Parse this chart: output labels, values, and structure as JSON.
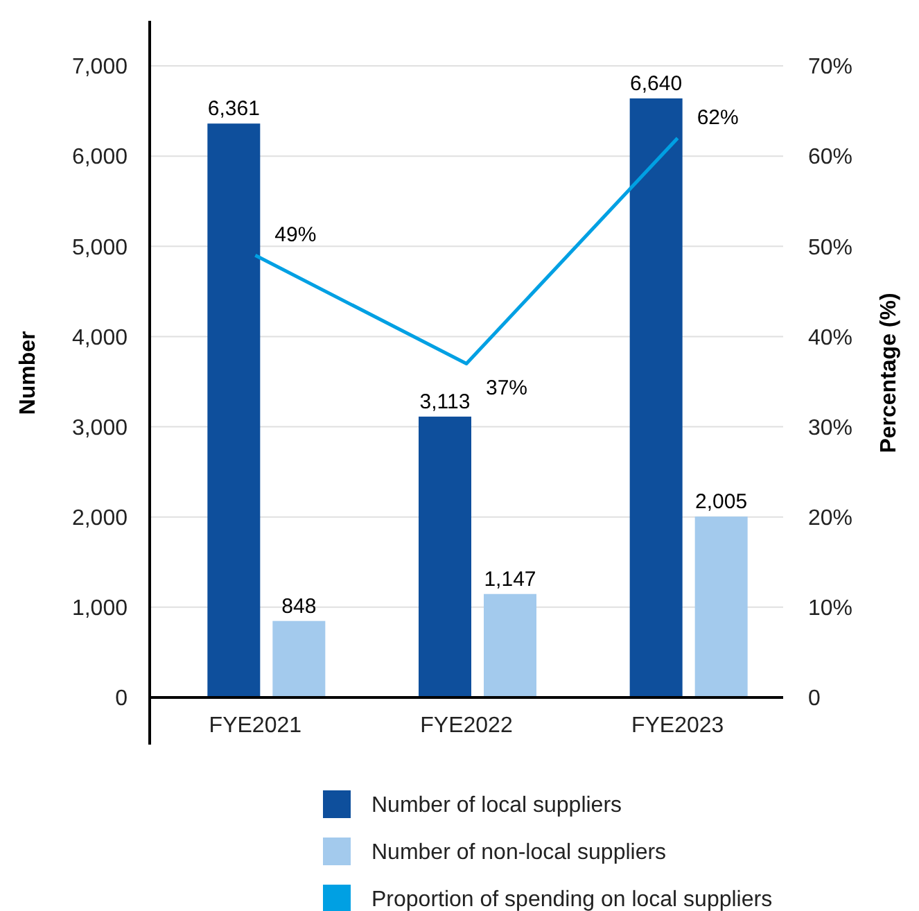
{
  "chart_data": {
    "type": "bar",
    "categories": [
      "FYE2021",
      "FYE2022",
      "FYE2023"
    ],
    "ylabel": "Number",
    "y2label": "Percentage (%)",
    "ylim": [
      0,
      7500
    ],
    "yticks": [
      0,
      {
        "value": 1000,
        "label": "1,000"
      },
      {
        "value": 2000,
        "label": "2,000"
      },
      {
        "value": 3000,
        "label": "3,000"
      },
      {
        "value": 4000,
        "label": "4,000"
      },
      {
        "value": 5000,
        "label": "5,000"
      },
      {
        "value": 6000,
        "label": "6,000"
      },
      {
        "value": 7000,
        "label": "7,000"
      }
    ],
    "y2lim": [
      0,
      75
    ],
    "y2ticks": [
      0,
      {
        "value": 10,
        "label": "10%"
      },
      {
        "value": 20,
        "label": "20%"
      },
      {
        "value": 30,
        "label": "30%"
      },
      {
        "value": 40,
        "label": "40%"
      },
      {
        "value": 50,
        "label": "50%"
      },
      {
        "value": 60,
        "label": "60%"
      },
      {
        "value": 70,
        "label": "70%"
      }
    ],
    "grid": "y",
    "legend": "bottom",
    "series": [
      {
        "name": "Number of local suppliers",
        "color": "#0e4f9c",
        "values": [
          6361,
          3113,
          6640
        ],
        "value_labels": [
          "6,361",
          "3,113",
          "6,640"
        ]
      },
      {
        "name": "Number of non-local suppliers",
        "color": "#a3caed",
        "values": [
          848,
          1147,
          2005
        ],
        "value_labels": [
          "848",
          "1,147",
          "2,005"
        ]
      },
      {
        "name": "Proportion of spending on local suppliers",
        "type": "line",
        "axis": "y2",
        "color": "#00a0e3",
        "values": [
          49,
          37,
          62
        ],
        "value_labels": [
          "49%",
          "37%",
          "62%"
        ]
      }
    ]
  }
}
